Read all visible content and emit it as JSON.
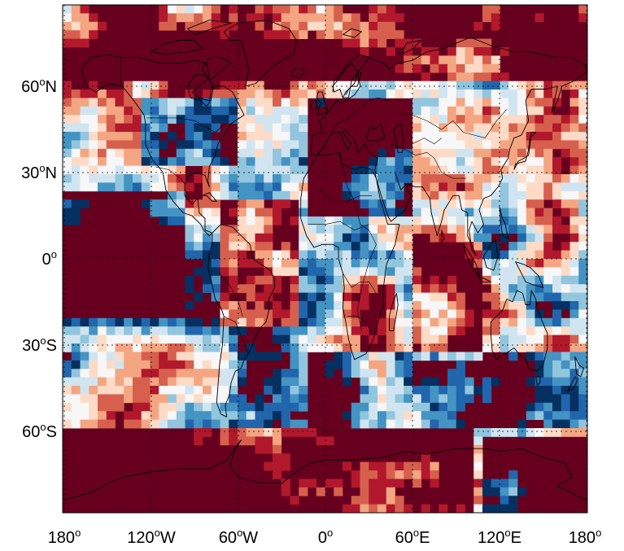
{
  "map": {
    "colors": {
      "high": "#67001f",
      "low": "#053061",
      "frame": "#000000",
      "grid": "#000000",
      "coastline": "#000000"
    },
    "colorscale": [
      "#053061",
      "#2166ac",
      "#4393c3",
      "#92c5de",
      "#d1e5f0",
      "#f7f7f7",
      "#fddbc7",
      "#f4a582",
      "#d6604d",
      "#b2182b",
      "#67001f"
    ],
    "grid": {
      "on": true,
      "style": "dotted"
    },
    "y_ticks": [
      {
        "label": "60",
        "deg": "o",
        "hem": "N",
        "lat": 60
      },
      {
        "label": "30",
        "deg": "o",
        "hem": "N",
        "lat": 30
      },
      {
        "label": "0",
        "deg": "o",
        "hem": "",
        "lat": 0
      },
      {
        "label": "30",
        "deg": "o",
        "hem": "S",
        "lat": -30
      },
      {
        "label": "60",
        "deg": "o",
        "hem": "S",
        "lat": -60
      }
    ],
    "x_ticks": [
      {
        "label": "180",
        "deg": "o",
        "hem": "",
        "lon": -180
      },
      {
        "label": "120",
        "deg": "o",
        "hem": "W",
        "lon": -120
      },
      {
        "label": "60",
        "deg": "o",
        "hem": "W",
        "lon": -60
      },
      {
        "label": "0",
        "deg": "o",
        "hem": "",
        "lon": 0
      },
      {
        "label": "60",
        "deg": "o",
        "hem": "E",
        "lon": 60
      },
      {
        "label": "120",
        "deg": "o",
        "hem": "E",
        "lon": 120
      },
      {
        "label": "180",
        "deg": "o",
        "hem": "",
        "lon": 180
      }
    ]
  }
}
